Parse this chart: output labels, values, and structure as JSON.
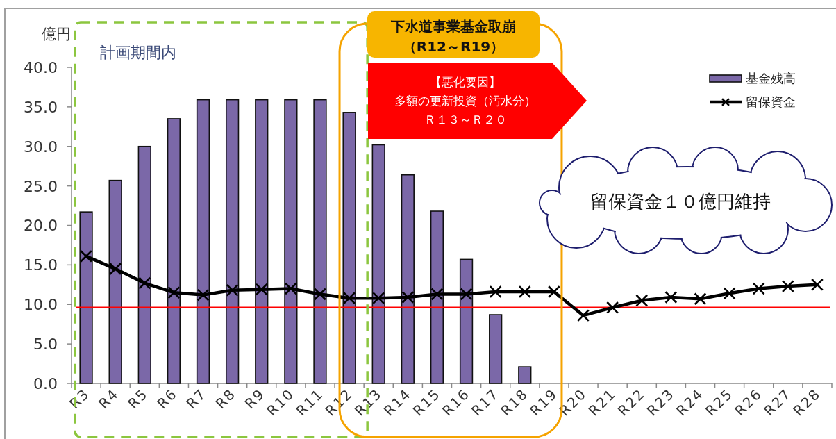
{
  "chart_data": {
    "type": "bar",
    "ylabel": "億円",
    "categories": [
      "R3",
      "R4",
      "R5",
      "R6",
      "R7",
      "R8",
      "R9",
      "R10",
      "R11",
      "R12",
      "R13",
      "R14",
      "R15",
      "R16",
      "R17",
      "R18",
      "R19",
      "R20",
      "R21",
      "R22",
      "R23",
      "R24",
      "R25",
      "R26",
      "R27",
      "R28"
    ],
    "series": [
      {
        "name": "基金残高",
        "color": "#7b68a8",
        "values": [
          21.7,
          25.7,
          30.0,
          33.5,
          35.9,
          35.9,
          35.9,
          35.9,
          35.9,
          34.3,
          30.2,
          26.4,
          21.8,
          15.7,
          8.7,
          2.1,
          null,
          null,
          null,
          null,
          null,
          null,
          null,
          null,
          null,
          null
        ]
      },
      {
        "name": "留保資金",
        "type": "line",
        "color": "#000000",
        "marker": "cross",
        "values": [
          16.1,
          14.5,
          12.7,
          11.5,
          11.2,
          11.8,
          11.9,
          12.0,
          11.3,
          10.8,
          10.8,
          10.9,
          11.3,
          11.3,
          11.6,
          11.6,
          11.6,
          8.6,
          9.6,
          10.5,
          10.9,
          10.7,
          11.4,
          12.0,
          12.3,
          12.5
        ]
      }
    ],
    "ylim": [
      0,
      40
    ],
    "yticks": [
      {
        "value": 0,
        "label": "0.0"
      },
      {
        "value": 5,
        "label": "5.0"
      },
      {
        "value": 10,
        "label": "10.0"
      },
      {
        "value": 15,
        "label": "15.0"
      },
      {
        "value": 20,
        "label": "20.0"
      },
      {
        "value": 25,
        "label": "25.0"
      },
      {
        "value": 30,
        "label": "30.0"
      },
      {
        "value": 35,
        "label": "35.0"
      },
      {
        "value": 40,
        "label": "40.0"
      }
    ],
    "ref_lines": [
      {
        "axis": "y",
        "value": 9.6,
        "color": "#ff0000"
      }
    ],
    "annotations": [
      "計画期間内",
      "下水道事業基金取崩",
      "（R12～R19）",
      "【悪化要因】",
      "多額の更新投資（汚水分）",
      "Ｒ１３～Ｒ２０",
      "留保資金１０億円維持"
    ],
    "legend": "top right"
  }
}
